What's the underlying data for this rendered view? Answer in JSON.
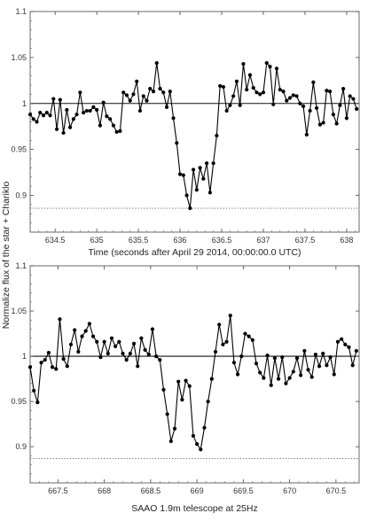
{
  "ylabel": "Normalize flux of the star + Chariklo",
  "chart_data": [
    {
      "type": "line",
      "title": "",
      "xlabel": "Time (seconds after April 29 2014, 00:00:00.0 UTC)",
      "ylabel": "",
      "xlim": [
        634.2,
        638.15
      ],
      "ylim": [
        0.86,
        1.1
      ],
      "grid": false,
      "xticks": [
        634.5,
        635,
        635.5,
        636,
        636.5,
        637,
        637.5,
        638
      ],
      "xtick_labels": [
        "634.5",
        "635",
        "635.5",
        "636",
        "636.5",
        "637",
        "637.5",
        "638"
      ],
      "yticks": [
        0.9,
        0.95,
        1,
        1.05,
        1.1
      ],
      "ytick_labels": [
        "0.9",
        "0.95",
        "1",
        "1.05",
        "1.1"
      ],
      "reference_lines": [
        {
          "y": 1.0,
          "style": "solid"
        },
        {
          "y": 0.886,
          "style": "dotted"
        }
      ],
      "series": [
        {
          "x": [
            634.2,
            634.24,
            634.28,
            634.32,
            634.36,
            634.4,
            634.44,
            634.48,
            634.52,
            634.56,
            634.6,
            634.64,
            634.68,
            634.72,
            634.76,
            634.8,
            634.84,
            634.88,
            634.92,
            634.96,
            635.0,
            635.04,
            635.08,
            635.12,
            635.16,
            635.2,
            635.24,
            635.28,
            635.32,
            635.36,
            635.4,
            635.44,
            635.48,
            635.52,
            635.56,
            635.6,
            635.64,
            635.68,
            635.72,
            635.76,
            635.8,
            635.84,
            635.88,
            635.92,
            635.96,
            636.0,
            636.04,
            636.08,
            636.12,
            636.16,
            636.2,
            636.24,
            636.28,
            636.32,
            636.36,
            636.4,
            636.44,
            636.48,
            636.52,
            636.56,
            636.6,
            636.64,
            636.68,
            636.72,
            636.76,
            636.8,
            636.84,
            636.88,
            636.92,
            636.96,
            637.0,
            637.04,
            637.08,
            637.12,
            637.16,
            637.2,
            637.24,
            637.28,
            637.32,
            637.36,
            637.4,
            637.44,
            637.48,
            637.52,
            637.56,
            637.6,
            637.64,
            637.68,
            637.72,
            637.76,
            637.8,
            637.84,
            637.88,
            637.92,
            637.96,
            638.0,
            638.04,
            638.08,
            638.12
          ],
          "values": [
            0.988,
            0.983,
            0.98,
            0.99,
            0.987,
            0.99,
            0.987,
            1.005,
            0.972,
            1.004,
            0.968,
            0.993,
            0.974,
            0.983,
            0.988,
            1.012,
            0.99,
            0.992,
            0.992,
            0.996,
            0.993,
            0.976,
            1.001,
            0.986,
            0.983,
            0.976,
            0.969,
            0.97,
            1.012,
            1.009,
            1.003,
            1.01,
            1.024,
            0.992,
            1.008,
            1.003,
            1.016,
            1.013,
            1.044,
            1.016,
            1.012,
            0.996,
            1.013,
            0.984,
            0.957,
            0.923,
            0.922,
            0.9,
            0.886,
            0.928,
            0.906,
            0.93,
            0.918,
            0.935,
            0.903,
            0.935,
            0.965,
            1.019,
            1.018,
            0.992,
            0.998,
            1.008,
            1.024,
            0.998,
            1.043,
            1.015,
            1.031,
            1.017,
            1.012,
            1.01,
            1.012,
            1.044,
            1.04,
            0.999,
            1.038,
            1.015,
            1.013,
            1.003,
            1.006,
            1.009,
            1.008,
            1.0,
            0.997,
            0.966,
            0.992,
            1.023,
            0.995,
            0.977,
            0.979,
            1.014,
            1.013,
            0.988,
            0.978,
            0.998,
            1.016,
            0.984,
            1.008,
            1.005,
            0.994
          ]
        }
      ]
    },
    {
      "type": "line",
      "title": "",
      "xlabel": "SAAO 1.9m telescope at 25Hz",
      "ylabel": "",
      "xlim": [
        667.2,
        670.75
      ],
      "ylim": [
        0.86,
        1.1
      ],
      "grid": false,
      "xticks": [
        667.5,
        668,
        668.5,
        669,
        669.5,
        670,
        670.5
      ],
      "xtick_labels": [
        "667.5",
        "668",
        "668.5",
        "669",
        "669.5",
        "670",
        "670.5"
      ],
      "yticks": [
        0.9,
        0.95,
        1,
        1.05,
        1.1
      ],
      "ytick_labels": [
        "0.9",
        "0.95",
        "1",
        "1.05",
        "1.1"
      ],
      "reference_lines": [
        {
          "y": 1.0,
          "style": "solid"
        },
        {
          "y": 0.887,
          "style": "dotted"
        }
      ],
      "series": [
        {
          "x": [
            667.2,
            667.24,
            667.28,
            667.32,
            667.36,
            667.4,
            667.44,
            667.48,
            667.52,
            667.56,
            667.6,
            667.64,
            667.68,
            667.72,
            667.76,
            667.8,
            667.84,
            667.88,
            667.92,
            667.96,
            668.0,
            668.04,
            668.08,
            668.12,
            668.16,
            668.2,
            668.24,
            668.28,
            668.32,
            668.36,
            668.4,
            668.44,
            668.48,
            668.52,
            668.56,
            668.6,
            668.64,
            668.68,
            668.72,
            668.76,
            668.8,
            668.84,
            668.88,
            668.92,
            668.96,
            669.0,
            669.04,
            669.08,
            669.12,
            669.16,
            669.2,
            669.24,
            669.28,
            669.32,
            669.36,
            669.4,
            669.44,
            669.48,
            669.52,
            669.56,
            669.6,
            669.64,
            669.68,
            669.72,
            669.76,
            669.8,
            669.84,
            669.88,
            669.92,
            669.96,
            670.0,
            670.04,
            670.08,
            670.12,
            670.16,
            670.2,
            670.24,
            670.28,
            670.32,
            670.36,
            670.4,
            670.44,
            670.48,
            670.52,
            670.56,
            670.6,
            670.64,
            670.68,
            670.72
          ],
          "values": [
            0.988,
            0.962,
            0.949,
            0.993,
            0.996,
            1.004,
            0.988,
            0.986,
            1.041,
            0.997,
            0.989,
            1.013,
            1.029,
            1.005,
            1.022,
            1.028,
            1.036,
            1.022,
            1.016,
            0.999,
            1.016,
            1.003,
            1.02,
            1.011,
            1.016,
            1.003,
            0.996,
            1.003,
            1.014,
            0.989,
            1.02,
            1.007,
            1.002,
            1.03,
            1.0,
            0.996,
            0.963,
            0.936,
            0.906,
            0.92,
            0.972,
            0.952,
            0.973,
            0.967,
            0.912,
            0.903,
            0.897,
            0.921,
            0.95,
            0.975,
            1.005,
            1.035,
            1.013,
            1.016,
            1.045,
            0.993,
            0.98,
            1.0,
            1.025,
            1.022,
            1.018,
            0.992,
            0.982,
            0.976,
            1.001,
            0.968,
            0.998,
            0.975,
            0.999,
            0.97,
            0.976,
            0.983,
            0.998,
            0.979,
            1.006,
            0.985,
            0.977,
            1.002,
            0.989,
            1.003,
            0.99,
            0.999,
            0.98,
            1.016,
            1.019,
            1.013,
            1.01,
            0.99,
            1.006
          ]
        }
      ]
    }
  ]
}
